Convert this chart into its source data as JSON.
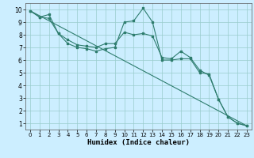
{
  "xlabel": "Humidex (Indice chaleur)",
  "background_color": "#cceeff",
  "grid_color": "#99cccc",
  "line_color": "#2e7d6e",
  "xlim": [
    -0.5,
    23.5
  ],
  "ylim": [
    0.5,
    10.5
  ],
  "xticks": [
    0,
    1,
    2,
    3,
    4,
    5,
    6,
    7,
    8,
    9,
    10,
    11,
    12,
    13,
    14,
    15,
    16,
    17,
    18,
    19,
    20,
    21,
    22,
    23
  ],
  "yticks": [
    1,
    2,
    3,
    4,
    5,
    6,
    7,
    8,
    9,
    10
  ],
  "line1_x": [
    0,
    1,
    2,
    3,
    4,
    5,
    6,
    7,
    8,
    9,
    10,
    11,
    12,
    13,
    14,
    15,
    16,
    17,
    18,
    19,
    20,
    21,
    22,
    23
  ],
  "line1_y": [
    9.9,
    9.4,
    9.6,
    8.1,
    7.3,
    7.0,
    6.9,
    6.7,
    6.9,
    7.0,
    9.0,
    9.1,
    10.1,
    9.0,
    6.0,
    6.0,
    6.1,
    6.1,
    5.0,
    4.9,
    2.9,
    1.5,
    1.0,
    0.8
  ],
  "line2_x": [
    0,
    1,
    2,
    3,
    4,
    5,
    6,
    7,
    8,
    9,
    10,
    11,
    12,
    13,
    14,
    15,
    16,
    17,
    18,
    19,
    20,
    21,
    22,
    23
  ],
  "line2_y": [
    9.9,
    9.4,
    9.3,
    8.1,
    7.6,
    7.2,
    7.1,
    7.0,
    7.3,
    7.3,
    8.2,
    8.0,
    8.1,
    7.9,
    6.2,
    6.1,
    6.7,
    6.2,
    5.2,
    4.8,
    2.9,
    1.5,
    1.0,
    0.8
  ],
  "line3_x": [
    0,
    23
  ],
  "line3_y": [
    9.9,
    0.8
  ]
}
